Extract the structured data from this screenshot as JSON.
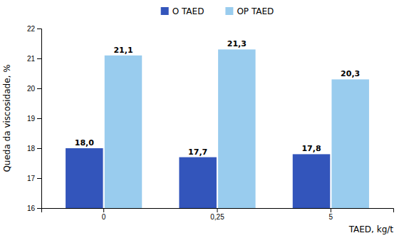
{
  "chart_data": {
    "type": "bar",
    "categories": [
      "0",
      "0,25",
      "5"
    ],
    "series": [
      {
        "name": "O TAED",
        "color": "#3355BB",
        "values": [
          18.0,
          17.7,
          17.8
        ],
        "value_labels": [
          "18,0",
          "17,7",
          "17,8"
        ]
      },
      {
        "name": "OP TAED",
        "color": "#99CCEE",
        "values": [
          21.1,
          21.3,
          20.3
        ],
        "value_labels": [
          "21,1",
          "21,3",
          "20,3"
        ]
      }
    ],
    "xlabel": "TAED, kg/t",
    "ylabel": "Queda da viscosidade, %",
    "ylim": [
      16,
      22
    ],
    "yticks": [
      16,
      17,
      18,
      19,
      20,
      21,
      22
    ],
    "data_labels": true,
    "grid": false,
    "legend": "top"
  }
}
